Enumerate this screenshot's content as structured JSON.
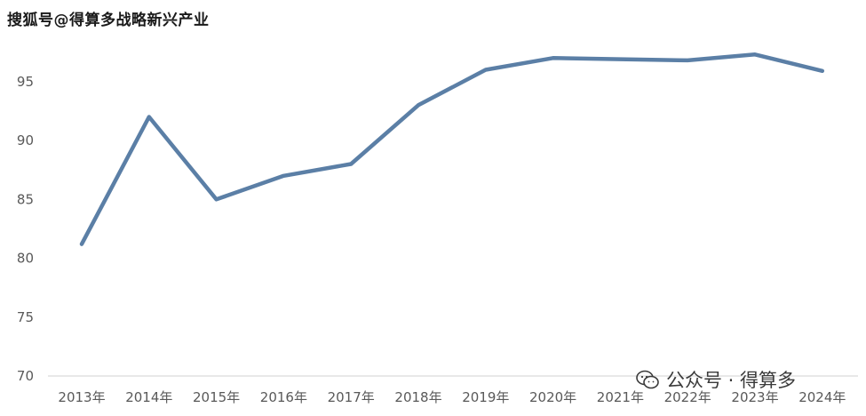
{
  "watermark_top": "搜狐号@得算多战略新兴产业",
  "watermark_bottom": "公众号 · 得算多",
  "chart_data": {
    "type": "line",
    "title": "",
    "xlabel": "",
    "ylabel": "",
    "categories": [
      "2013年",
      "2014年",
      "2015年",
      "2016年",
      "2017年",
      "2018年",
      "2019年",
      "2020年",
      "2021年",
      "2022年",
      "2023年",
      "2024年"
    ],
    "series": [
      {
        "values": [
          81.2,
          92.0,
          85.0,
          87.0,
          88.0,
          93.0,
          96.0,
          97.0,
          96.9,
          96.8,
          97.3,
          95.9
        ]
      }
    ],
    "ylim": [
      70,
      100
    ],
    "yticks": [
      70,
      75,
      80,
      85,
      90,
      95
    ],
    "grid": false,
    "legend": "none",
    "colors": {
      "line": "#5b7fa6",
      "axis": "#d9d9d9",
      "text": "#595959"
    }
  }
}
